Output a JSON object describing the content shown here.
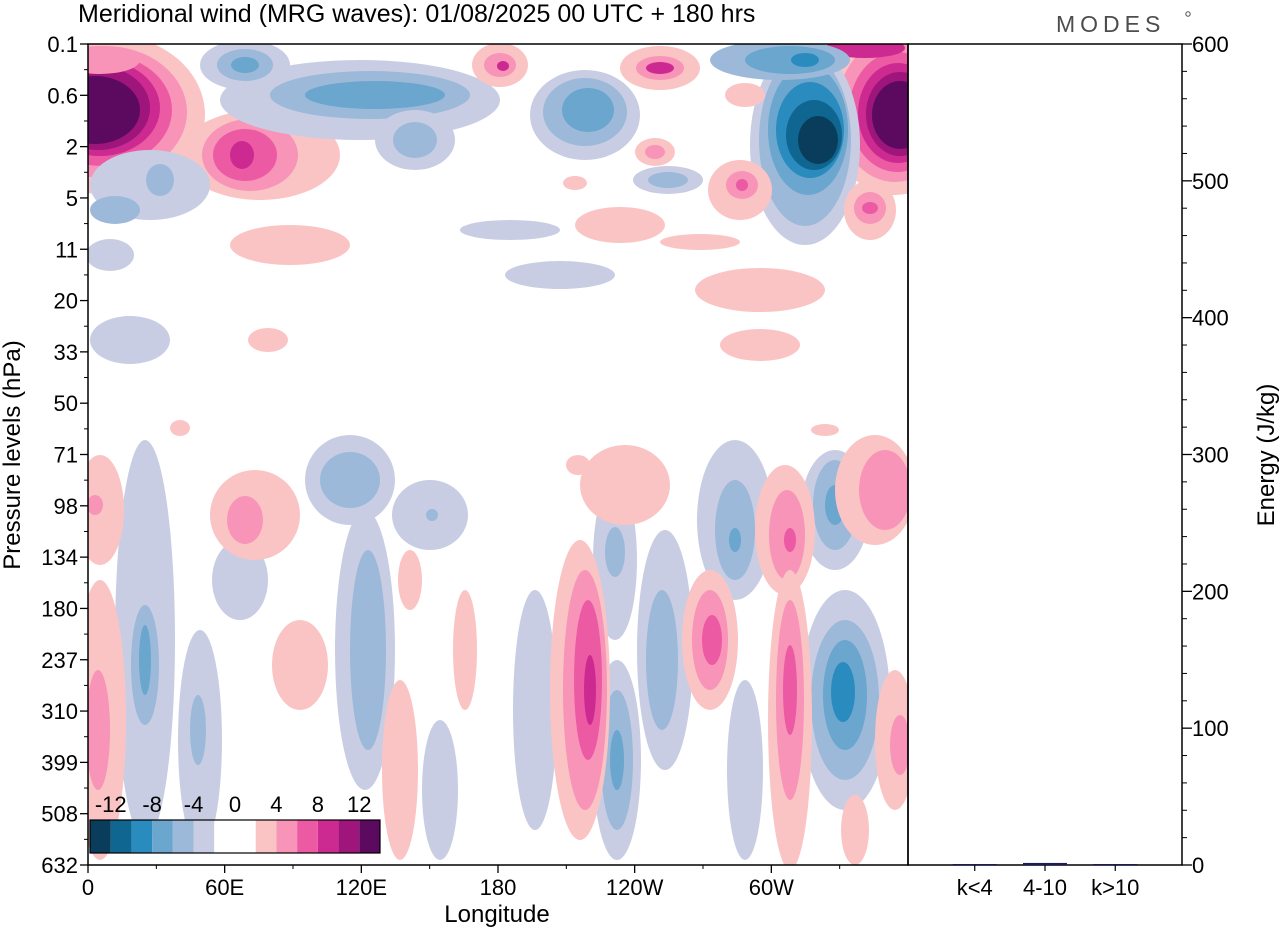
{
  "chart_data": {
    "type": "heatmap",
    "title": "Meridional wind (MRG waves):  01/08/2025  00 UTC  + 180 hrs",
    "logo": "MODES",
    "xlabel": "Longitude",
    "ylabel": "Pressure levels (hPa)",
    "x_ticks": [
      "0",
      "60E",
      "120E",
      "180",
      "120W",
      "60W"
    ],
    "x_tick_degrees": [
      0,
      60,
      120,
      180,
      240,
      300
    ],
    "xlim": [
      0,
      360
    ],
    "y_ticks": [
      "0.1",
      "0.6",
      "2",
      "5",
      "11",
      "20",
      "33",
      "50",
      "71",
      "98",
      "134",
      "180",
      "237",
      "310",
      "399",
      "508",
      "632"
    ],
    "colorbar": {
      "labels": [
        "-12",
        "-8",
        "-4",
        "0",
        "4",
        "8",
        "12"
      ],
      "levels": [
        -14,
        -12,
        -10,
        -8,
        -6,
        -4,
        -2,
        2,
        4,
        6,
        8,
        10,
        12,
        14
      ],
      "colors": [
        "#0a3d5c",
        "#0f6690",
        "#2a8bbf",
        "#6aa6cd",
        "#9cb9da",
        "#c8cde3",
        "#ffffff",
        "#ffffff",
        "#fbc4c4",
        "#f894b8",
        "#ec5aa4",
        "#cc2a90",
        "#9e157c",
        "#5c0a5f"
      ]
    },
    "features": [
      {
        "name": "upper-left-positive-max",
        "lon": 8,
        "level": 1.0,
        "value": 14
      },
      {
        "name": "upper-right-positive-max",
        "lon": 355,
        "level": 1.0,
        "value": 14
      },
      {
        "name": "stratosphere-negative-min",
        "lon": 318,
        "level": 2.0,
        "value": -14
      },
      {
        "name": "stratosphere-positive-60e",
        "lon": 68,
        "level": 2.0,
        "value": 10
      },
      {
        "name": "lower-positive-column-210",
        "lon": 222,
        "level": 310,
        "value": 10
      },
      {
        "name": "lower-negative-column-330",
        "lon": 330,
        "level": 280,
        "value": -10
      }
    ],
    "energy_panel": {
      "type": "bar",
      "ylabel": "Energy (J/kg)",
      "ylim": [
        0,
        600
      ],
      "y_ticks": [
        "0",
        "100",
        "200",
        "300",
        "400",
        "500",
        "600"
      ],
      "y_tick_values": [
        0,
        100,
        200,
        300,
        400,
        500,
        600
      ],
      "categories": [
        "k<4",
        "4-10",
        "k>10"
      ],
      "values": [
        0.4,
        1.5,
        0.3
      ],
      "bar_color": "#1a1a60"
    }
  }
}
